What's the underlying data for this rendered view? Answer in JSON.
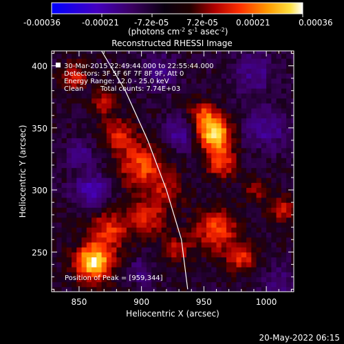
{
  "chart_data": {
    "type": "heatmap",
    "title": "Reconstructed RHESSI Image",
    "xlabel": "Heliocentric X (arcsec)",
    "ylabel": "Heliocentric Y (arcsec)",
    "xlim": [
      828,
      1022
    ],
    "ylim": [
      218,
      412
    ],
    "x_ticks": [
      850,
      900,
      950,
      1000
    ],
    "x_tick_labels": [
      "850",
      "900",
      "950",
      "1000"
    ],
    "y_ticks": [
      250,
      300,
      350,
      400
    ],
    "y_tick_labels": [
      "250",
      "300",
      "350",
      "400"
    ],
    "colorbar": {
      "ticks": [
        -0.00036,
        -0.00021,
        -7.2e-05,
        7.2e-05,
        0.00021,
        0.00036
      ],
      "tick_labels": [
        "-0.00036",
        "-0.00021",
        "-7.2e-05",
        "7.2e-05",
        "0.00021",
        "0.00036"
      ],
      "range": [
        -0.00036,
        0.00036
      ],
      "colors": [
        "#0000ff",
        "#5a00a0",
        "#2a0030",
        "#000000",
        "#8a0000",
        "#ff2a00",
        "#ff9a00",
        "#ffff60",
        "#ffffff"
      ]
    },
    "colorbar_label_main": "(photons cm",
    "colorbar_label_exp1": "-2",
    "colorbar_label_s": " s",
    "colorbar_label_exp2": "-1",
    "colorbar_label_asec": " asec",
    "colorbar_label_exp3": "-2",
    "colorbar_label_end": ")",
    "annotations": [
      "30-Mar-2015 22:49:44.000 to 22:55:44.000",
      "Detectors: 3F 5F 6F 7F 8F 9F, Att 0",
      "Energy Range: 12.0 - 25.0 keV",
      "Clean",
      "Total counts: 7.74E+03",
      "Position of Peak = [959,344]"
    ],
    "peak": [
      959,
      344
    ],
    "grid": false,
    "limb": [
      [
        937,
        220
      ],
      [
        932,
        260
      ],
      [
        920,
        300
      ],
      [
        905,
        340
      ],
      [
        887,
        380
      ],
      [
        868,
        412
      ]
    ],
    "sources": [
      {
        "x": 862,
        "y": 242,
        "sigma": 10,
        "amp": 1.0
      },
      {
        "x": 959,
        "y": 344,
        "sigma": 9,
        "amp": 0.95
      },
      {
        "x": 950,
        "y": 360,
        "sigma": 8,
        "amp": 0.55
      },
      {
        "x": 964,
        "y": 322,
        "sigma": 8,
        "amp": 0.55
      },
      {
        "x": 900,
        "y": 320,
        "sigma": 13,
        "amp": 0.55
      },
      {
        "x": 882,
        "y": 345,
        "sigma": 9,
        "amp": 0.45
      },
      {
        "x": 846,
        "y": 392,
        "sigma": 7,
        "amp": 0.45
      },
      {
        "x": 874,
        "y": 268,
        "sigma": 11,
        "amp": 0.5
      },
      {
        "x": 905,
        "y": 278,
        "sigma": 10,
        "amp": 0.45
      },
      {
        "x": 960,
        "y": 268,
        "sigma": 12,
        "amp": 0.55
      },
      {
        "x": 980,
        "y": 245,
        "sigma": 8,
        "amp": 0.45
      },
      {
        "x": 1012,
        "y": 285,
        "sigma": 7,
        "amp": 0.45
      },
      {
        "x": 992,
        "y": 300,
        "sigma": 6,
        "amp": 0.3
      },
      {
        "x": 928,
        "y": 252,
        "sigma": 8,
        "amp": 0.35
      },
      {
        "x": 870,
        "y": 370,
        "sigma": 7,
        "amp": 0.35
      },
      {
        "x": 920,
        "y": 300,
        "sigma": 10,
        "amp": 0.3
      },
      {
        "x": 860,
        "y": 300,
        "sigma": 10,
        "amp": -0.45
      },
      {
        "x": 850,
        "y": 330,
        "sigma": 8,
        "amp": -0.3
      },
      {
        "x": 930,
        "y": 345,
        "sigma": 9,
        "amp": -0.35
      },
      {
        "x": 1000,
        "y": 350,
        "sigma": 12,
        "amp": -0.35
      },
      {
        "x": 990,
        "y": 395,
        "sigma": 12,
        "amp": -0.3
      },
      {
        "x": 915,
        "y": 395,
        "sigma": 10,
        "amp": -0.3
      },
      {
        "x": 1010,
        "y": 225,
        "sigma": 9,
        "amp": -0.25
      },
      {
        "x": 900,
        "y": 235,
        "sigma": 7,
        "amp": -0.25
      }
    ]
  },
  "footer": {
    "date_time": "20-May-2022 06:15"
  }
}
